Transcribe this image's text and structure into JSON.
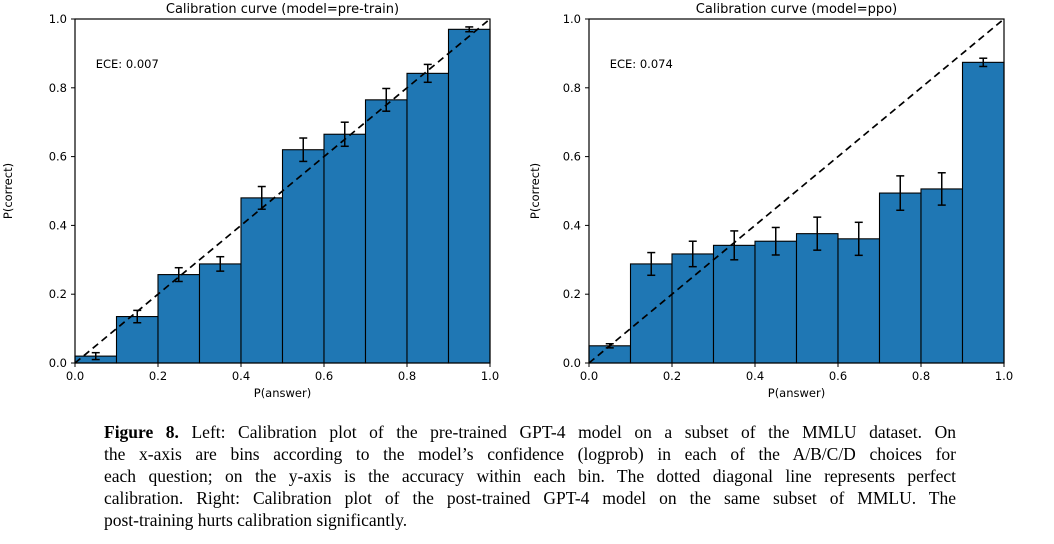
{
  "figure": {
    "caption": {
      "label": "Figure 8.",
      "lines": [
        "Left: Calibration plot of the pre-trained GPT-4 model on a subset of the MMLU dataset. On",
        "the x-axis are bins according to the model’s confidence (logprob) in each of the A/B/C/D choices for",
        "each question; on the y-axis is the accuracy within each bin. The dotted diagonal line represents perfect",
        "calibration. Right: Calibration plot of the post-trained GPT-4 model on the same subset of MMLU. The",
        "post-training hurts calibration significantly."
      ]
    }
  },
  "chart_data": [
    {
      "type": "bar",
      "title": "Calibration curve (model=pre-train)",
      "xlabel": "P(answer)",
      "ylabel": "P(correct)",
      "annotation": "ECE: 0.007",
      "bin_edges": [
        0.0,
        0.1,
        0.2,
        0.3,
        0.4,
        0.5,
        0.6,
        0.7,
        0.8,
        0.9,
        1.0
      ],
      "values": [
        0.02,
        0.135,
        0.257,
        0.288,
        0.48,
        0.62,
        0.665,
        0.765,
        0.842,
        0.97
      ],
      "errors": [
        0.01,
        0.018,
        0.02,
        0.021,
        0.033,
        0.034,
        0.035,
        0.033,
        0.026,
        0.007
      ],
      "xlim": [
        0.0,
        1.0
      ],
      "ylim": [
        0.0,
        1.0
      ],
      "xticks": [
        "0.0",
        "0.2",
        "0.4",
        "0.6",
        "0.8",
        "1.0"
      ],
      "yticks": [
        "0.0",
        "0.2",
        "0.4",
        "0.6",
        "0.8",
        "1.0"
      ],
      "diagonal": true,
      "bar_color": "#1f77b4",
      "edge_color": "#000000"
    },
    {
      "type": "bar",
      "title": "Calibration curve (model=ppo)",
      "xlabel": "P(answer)",
      "ylabel": "P(correct)",
      "annotation": "ECE: 0.074",
      "bin_edges": [
        0.0,
        0.1,
        0.2,
        0.3,
        0.4,
        0.5,
        0.6,
        0.7,
        0.8,
        0.9,
        1.0
      ],
      "values": [
        0.05,
        0.288,
        0.317,
        0.342,
        0.354,
        0.376,
        0.361,
        0.494,
        0.506,
        0.874
      ],
      "errors": [
        0.006,
        0.033,
        0.037,
        0.042,
        0.04,
        0.048,
        0.048,
        0.05,
        0.047,
        0.012
      ],
      "xlim": [
        0.0,
        1.0
      ],
      "ylim": [
        0.0,
        1.0
      ],
      "xticks": [
        "0.0",
        "0.2",
        "0.4",
        "0.6",
        "0.8",
        "1.0"
      ],
      "yticks": [
        "0.0",
        "0.2",
        "0.4",
        "0.6",
        "0.8",
        "1.0"
      ],
      "diagonal": true,
      "bar_color": "#1f77b4",
      "edge_color": "#000000"
    }
  ]
}
